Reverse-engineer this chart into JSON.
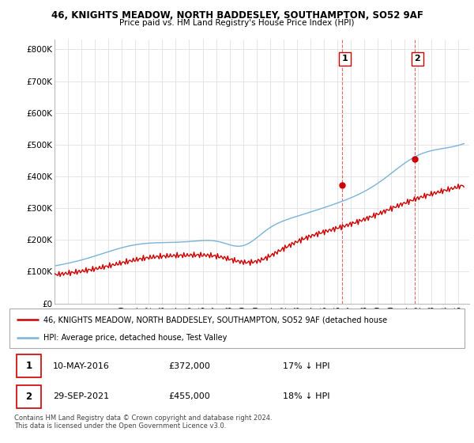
{
  "title_line1": "46, KNIGHTS MEADOW, NORTH BADDESLEY, SOUTHAMPTON, SO52 9AF",
  "title_line2": "Price paid vs. HM Land Registry's House Price Index (HPI)",
  "ylabel_ticks": [
    "£0",
    "£100K",
    "£200K",
    "£300K",
    "£400K",
    "£500K",
    "£600K",
    "£700K",
    "£800K"
  ],
  "ytick_values": [
    0,
    100000,
    200000,
    300000,
    400000,
    500000,
    600000,
    700000,
    800000
  ],
  "ylim": [
    0,
    830000
  ],
  "xlim_start": 1995.0,
  "xlim_end": 2025.8,
  "hpi_color": "#7ab3d9",
  "price_color": "#cc0000",
  "marker1_x": 2016.36,
  "marker1_y": 372000,
  "marker2_x": 2021.75,
  "marker2_y": 455000,
  "legend_line1": "46, KNIGHTS MEADOW, NORTH BADDESLEY, SOUTHAMPTON, SO52 9AF (detached house",
  "legend_line2": "HPI: Average price, detached house, Test Valley",
  "table_row1": [
    "1",
    "10-MAY-2016",
    "£372,000",
    "17% ↓ HPI"
  ],
  "table_row2": [
    "2",
    "29-SEP-2021",
    "£455,000",
    "18% ↓ HPI"
  ],
  "footnote": "Contains HM Land Registry data © Crown copyright and database right 2024.\nThis data is licensed under the Open Government Licence v3.0.",
  "background_color": "#ffffff",
  "grid_color": "#e0e0e0"
}
